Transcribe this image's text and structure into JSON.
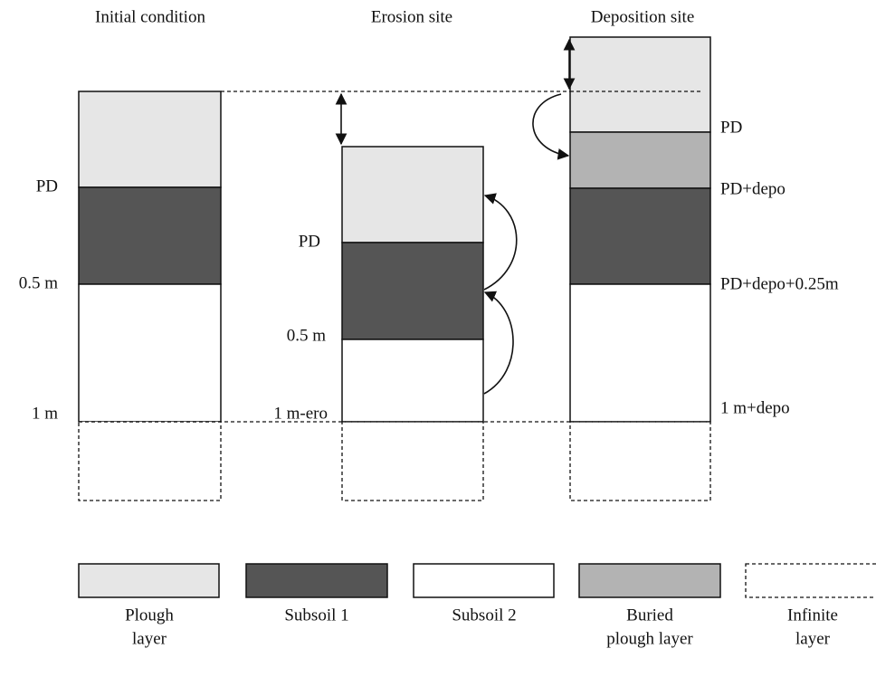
{
  "columns": [
    {
      "title": "Initial condition",
      "labels": [
        "PD",
        "0.5 m",
        "1 m"
      ]
    },
    {
      "title": "Erosion site",
      "labels": [
        "PD",
        "0.5 m",
        "1 m-ero"
      ]
    },
    {
      "title": "Deposition site",
      "labels": [
        "PD",
        "PD+depo",
        "PD+depo+0.25m",
        "1 m+depo"
      ]
    }
  ],
  "legend": [
    {
      "lines": [
        "Plough",
        "layer"
      ]
    },
    {
      "lines": [
        "Subsoil 1"
      ]
    },
    {
      "lines": [
        "Subsoil 2"
      ]
    },
    {
      "lines": [
        "Buried",
        "plough layer"
      ]
    },
    {
      "lines": [
        "Infinite",
        "layer"
      ]
    }
  ]
}
